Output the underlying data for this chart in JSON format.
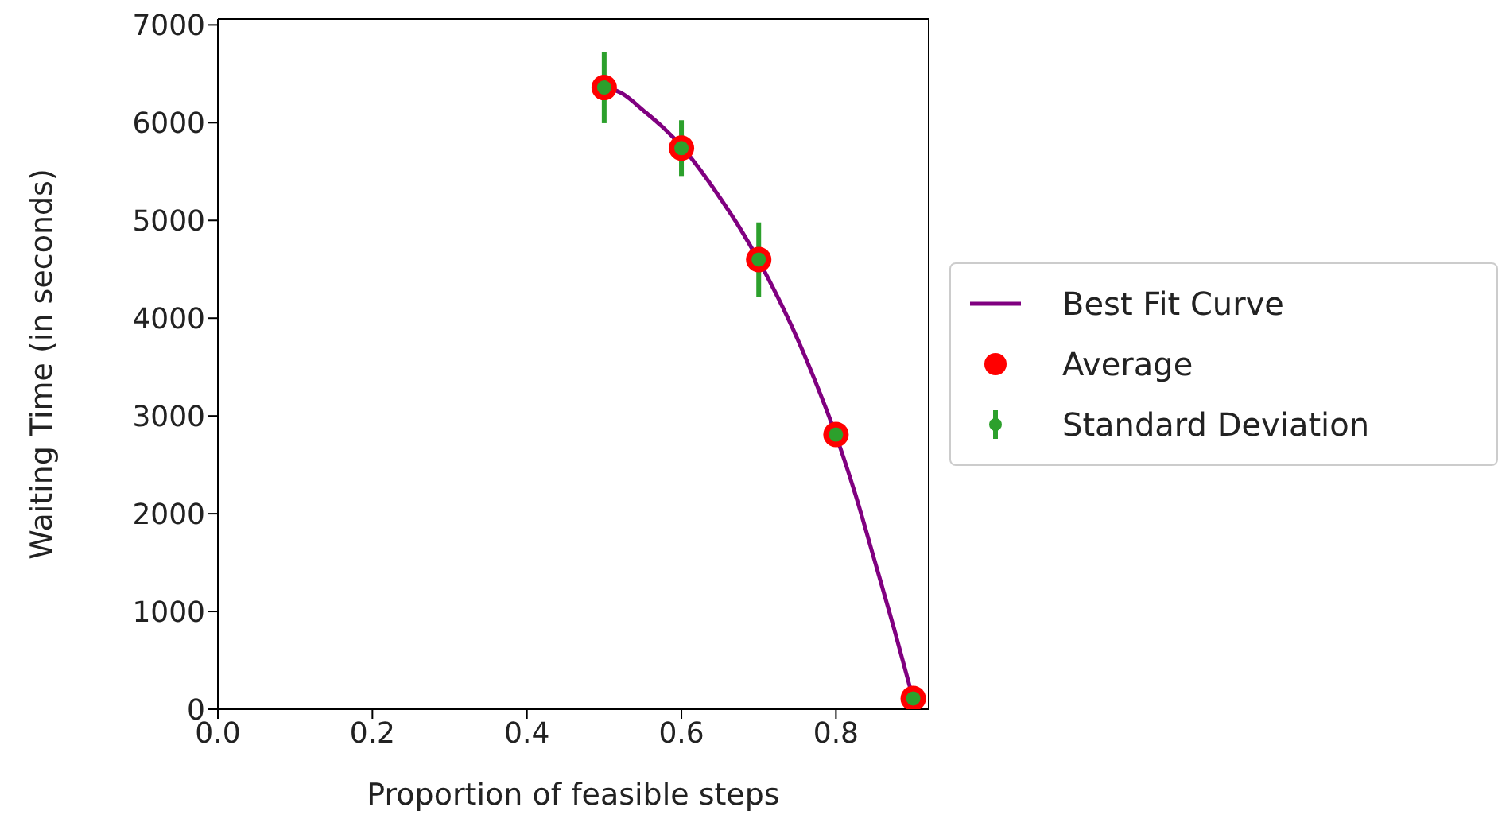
{
  "chart_data": {
    "type": "scatter",
    "xlabel": "Proportion of feasible steps",
    "ylabel": "Waiting Time (in seconds)",
    "xlim": [
      0,
      0.92
    ],
    "xticks": [
      {
        "value": 0,
        "label": "0.0"
      },
      {
        "value": 0.2,
        "label": "0.2"
      },
      {
        "value": 0.4,
        "label": "0.4"
      },
      {
        "value": 0.6,
        "label": "0.6"
      },
      {
        "value": 0.8,
        "label": "0.8"
      }
    ],
    "ylim": [
      0,
      7060
    ],
    "yticks": [
      0,
      1000,
      2000,
      3000,
      4000,
      5000,
      6000,
      7000
    ],
    "grid": false,
    "legend": "right",
    "series": [
      {
        "name": "Best Fit Curve",
        "type": "line",
        "color": "#800080",
        "marker": "none",
        "line_style": "solid",
        "x": [
          0.5,
          0.525,
          0.55,
          0.575,
          0.6,
          0.625,
          0.65,
          0.675,
          0.7,
          0.725,
          0.75,
          0.775,
          0.8,
          0.825,
          0.85,
          0.875,
          0.9
        ],
        "values": [
          6370,
          6290,
          6130,
          5960,
          5760,
          5510,
          5230,
          4930,
          4590,
          4210,
          3790,
          3320,
          2800,
          2200,
          1520,
          830,
          100
        ]
      },
      {
        "name": "Average",
        "type": "scatter",
        "color": "#ff0000",
        "marker": "circle",
        "x": [
          0.5,
          0.6,
          0.7,
          0.8,
          0.9
        ],
        "values": [
          6360,
          5740,
          4600,
          2810,
          110
        ]
      },
      {
        "name": "Standard Deviation",
        "type": "scatter",
        "color": "#2ca02c",
        "marker": "circle",
        "x": [
          0.5,
          0.6,
          0.7,
          0.8,
          0.9
        ],
        "values": [
          6360,
          5740,
          4600,
          2810,
          110
        ],
        "errors": [
          365,
          285,
          380,
          60,
          30
        ]
      }
    ]
  }
}
